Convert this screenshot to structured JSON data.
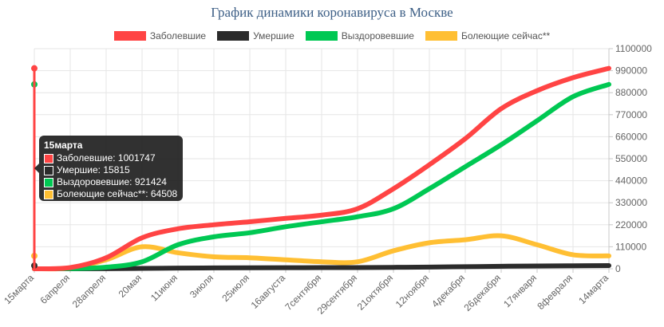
{
  "chart_data": {
    "type": "line",
    "title": "График динамики коронавируса в Москве",
    "categories": [
      "15марта",
      "6апреля",
      "28апреля",
      "20мая",
      "11июня",
      "3июля",
      "25июля",
      "16августа",
      "7сентября",
      "29сентября",
      "21октября",
      "12ноября",
      "4декабря",
      "26декабря",
      "17января",
      "8февраля",
      "14марта"
    ],
    "ylim": [
      0,
      1100000
    ],
    "yticks": [
      0,
      110000,
      220000,
      330000,
      440000,
      550000,
      660000,
      770000,
      880000,
      990000,
      1100000
    ],
    "ytick_labels": [
      "0",
      "110000",
      "220000",
      "330000",
      "440000",
      "550000",
      "660000",
      "770000",
      "880000",
      "990000",
      "1100000"
    ],
    "grid": true,
    "legend_position": "top",
    "series": [
      {
        "name": "Заболевшие",
        "color": "#ff4444",
        "values": [
          0,
          6000,
          55000,
          155000,
          200000,
          220000,
          235000,
          252000,
          268000,
          300000,
          400000,
          520000,
          650000,
          800000,
          890000,
          955000,
          1001747
        ]
      },
      {
        "name": "Умершие",
        "color": "#2b2b2b",
        "values": [
          0,
          100,
          700,
          2000,
          3500,
          4500,
          5100,
          5500,
          5800,
          6200,
          7200,
          8500,
          10500,
          12500,
          14000,
          15000,
          15815
        ]
      },
      {
        "name": "Выздоровевшие",
        "color": "#00c853",
        "values": [
          0,
          1000,
          8000,
          35000,
          120000,
          160000,
          180000,
          210000,
          235000,
          260000,
          300000,
          400000,
          510000,
          620000,
          740000,
          860000,
          921424
        ]
      },
      {
        "name": "Болеющие сейчас**",
        "color": "#ffbf33",
        "values": [
          0,
          4000,
          45000,
          110000,
          80000,
          60000,
          55000,
          45000,
          35000,
          35000,
          90000,
          130000,
          145000,
          165000,
          120000,
          70000,
          64508
        ]
      }
    ],
    "tooltip": {
      "title": "15марта",
      "rows": [
        {
          "label": "Заболевшие: 1001747",
          "color": "#ff4444"
        },
        {
          "label": "Умершие: 15815",
          "color": "#2b2b2b"
        },
        {
          "label": "Выздоровевшие: 921424",
          "color": "#00c853"
        },
        {
          "label": "Болеющие сейчас**: 64508",
          "color": "#ffbf33"
        }
      ]
    }
  }
}
